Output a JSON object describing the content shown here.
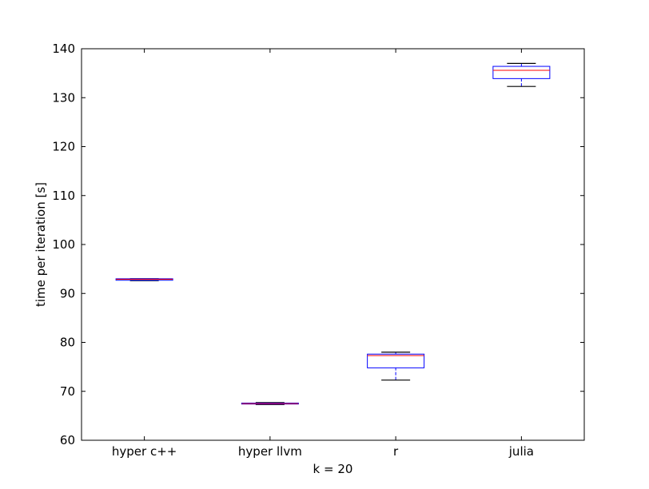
{
  "chart_data": {
    "type": "box",
    "title": "",
    "xlabel": "k = 20",
    "ylabel": "time per iteration [s]",
    "ylim": [
      60,
      140
    ],
    "yticks": [
      60,
      70,
      80,
      90,
      100,
      110,
      120,
      130,
      140
    ],
    "categories": [
      "hyper c++",
      "hyper llvm",
      "r",
      "julia"
    ],
    "boxes": [
      {
        "whisker_low": 92.6,
        "q1": 92.7,
        "median": 92.9,
        "q3": 93.0,
        "whisker_high": 93.0
      },
      {
        "whisker_low": 67.3,
        "q1": 67.4,
        "median": 67.5,
        "q3": 67.6,
        "whisker_high": 67.7
      },
      {
        "whisker_low": 72.3,
        "q1": 74.8,
        "median": 77.3,
        "q3": 77.6,
        "whisker_high": 78.0
      },
      {
        "whisker_low": 132.3,
        "q1": 133.9,
        "median": 135.6,
        "q3": 136.4,
        "whisker_high": 137.0
      }
    ],
    "colors": {
      "box": "#0000ff",
      "median": "#ff0000",
      "whisker_cap": "#000000",
      "axes": "#000000"
    },
    "grid": false,
    "legend": "none"
  }
}
